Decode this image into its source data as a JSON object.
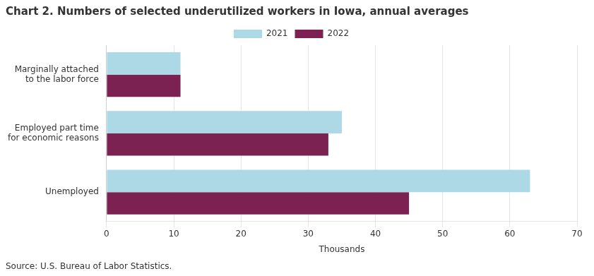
{
  "chart_data": {
    "type": "bar",
    "orientation": "horizontal",
    "title": "Chart 2. Numbers of selected underutilized workers in Iowa, annual averages",
    "categories": [
      "Marginally attached\nto the labor force",
      "Employed part time\nfor economic reasons",
      "Unemployed"
    ],
    "series": [
      {
        "name": "2021",
        "color": "#add8e6",
        "values": [
          11,
          35,
          63
        ]
      },
      {
        "name": "2022",
        "color": "#7b2252",
        "values": [
          11,
          33,
          45
        ]
      }
    ],
    "xlabel": "Thousands",
    "xlim": [
      0,
      70
    ],
    "xticks": [
      0,
      10,
      20,
      30,
      40,
      50,
      60,
      70
    ],
    "grid": true,
    "source": "Source: U.S. Bureau of Labor Statistics."
  }
}
